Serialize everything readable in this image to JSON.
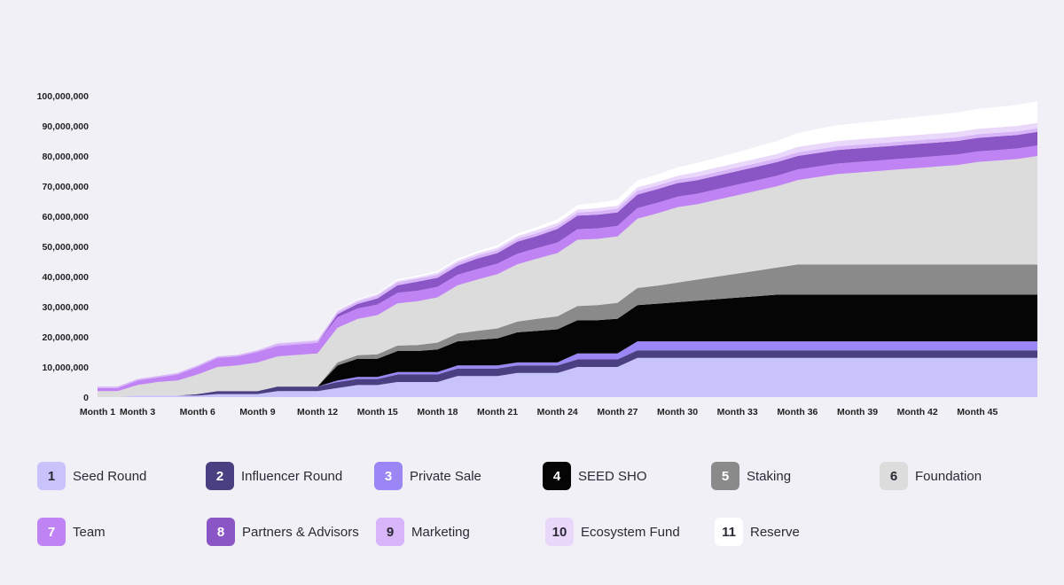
{
  "chart_data": {
    "type": "area",
    "stacked": true,
    "title": "",
    "xlabel": "",
    "ylabel": "",
    "ylim": [
      0,
      100000000
    ],
    "yticks": [
      0,
      10000000,
      20000000,
      30000000,
      40000000,
      50000000,
      60000000,
      70000000,
      80000000,
      90000000,
      100000000
    ],
    "ytick_labels": [
      "0",
      "10,000,000",
      "20,000,000",
      "30,000,000",
      "40,000,000",
      "50,000,000",
      "60,000,000",
      "70,000,000",
      "80,000,000",
      "90,000,000",
      "100,000,000"
    ],
    "xlim": [
      1,
      48
    ],
    "xticks": [
      {
        "x": 1,
        "label": "Month 1"
      },
      {
        "x": 3,
        "label": "Month 3"
      },
      {
        "x": 6,
        "label": "Month 6"
      },
      {
        "x": 9,
        "label": "Month 9"
      },
      {
        "x": 12,
        "label": "Month 12"
      },
      {
        "x": 15,
        "label": "Month 15"
      },
      {
        "x": 18,
        "label": "Month 18"
      },
      {
        "x": 21,
        "label": "Month 21"
      },
      {
        "x": 24,
        "label": "Month 24"
      },
      {
        "x": 27,
        "label": "Month 27"
      },
      {
        "x": 30,
        "label": "Month 30"
      },
      {
        "x": 33,
        "label": "Month 33"
      },
      {
        "x": 36,
        "label": "Month 36"
      },
      {
        "x": 39,
        "label": "Month 39"
      },
      {
        "x": 42,
        "label": "Month 42"
      },
      {
        "x": 45,
        "label": "Month 45"
      }
    ],
    "x": [
      1,
      2,
      3,
      4,
      5,
      6,
      7,
      8,
      9,
      10,
      11,
      12,
      13,
      14,
      15,
      16,
      17,
      18,
      19,
      20,
      21,
      22,
      23,
      24,
      25,
      26,
      27,
      28,
      29,
      30,
      31,
      32,
      33,
      34,
      35,
      36,
      37,
      38,
      39,
      40,
      41,
      42,
      43,
      44,
      45,
      46,
      47,
      48
    ],
    "series": [
      {
        "name": "Seed Round",
        "number": "1",
        "color": "#c9c3fb",
        "text_color": "#2a2a35",
        "values": [
          0,
          0,
          500000,
          500000,
          500000,
          500000,
          1000000,
          1000000,
          1000000,
          2000000,
          2000000,
          2000000,
          3000000,
          4000000,
          4000000,
          5000000,
          5000000,
          5000000,
          7000000,
          7000000,
          7000000,
          8000000,
          8000000,
          8000000,
          10000000,
          10000000,
          10000000,
          13000000,
          13000000,
          13000000,
          13000000,
          13000000,
          13000000,
          13000000,
          13000000,
          13000000,
          13000000,
          13000000,
          13000000,
          13000000,
          13000000,
          13000000,
          13000000,
          13000000,
          13000000,
          13000000,
          13000000,
          13000000
        ]
      },
      {
        "name": "Influencer Round",
        "number": "2",
        "color": "#4a3f80",
        "text_color": "#ffffff",
        "values": [
          0,
          0,
          0,
          0,
          0,
          500000,
          1000000,
          1000000,
          1000000,
          1500000,
          1500000,
          1500000,
          2000000,
          2000000,
          2000000,
          2500000,
          2500000,
          2500000,
          2500000,
          2500000,
          2500000,
          2500000,
          2500000,
          2500000,
          2500000,
          2500000,
          2500000,
          2500000,
          2500000,
          2500000,
          2500000,
          2500000,
          2500000,
          2500000,
          2500000,
          2500000,
          2500000,
          2500000,
          2500000,
          2500000,
          2500000,
          2500000,
          2500000,
          2500000,
          2500000,
          2500000,
          2500000,
          2500000
        ]
      },
      {
        "name": "Private Sale",
        "number": "3",
        "color": "#9a86f4",
        "text_color": "#ffffff",
        "values": [
          0,
          0,
          0,
          0,
          0,
          0,
          0,
          0,
          0,
          0,
          0,
          0,
          500000,
          700000,
          700000,
          800000,
          800000,
          800000,
          1000000,
          1000000,
          1000000,
          1000000,
          1000000,
          1000000,
          2000000,
          2000000,
          2000000,
          3000000,
          3000000,
          3000000,
          3000000,
          3000000,
          3000000,
          3000000,
          3000000,
          3000000,
          3000000,
          3000000,
          3000000,
          3000000,
          3000000,
          3000000,
          3000000,
          3000000,
          3000000,
          3000000,
          3000000,
          3000000
        ]
      },
      {
        "name": "SEED SHO",
        "number": "4",
        "color": "#050505",
        "text_color": "#ffffff",
        "values": [
          0,
          0,
          0,
          0,
          0,
          0,
          0,
          0,
          0,
          0,
          0,
          0,
          5000000,
          6000000,
          6000000,
          7000000,
          7000000,
          7500000,
          8000000,
          8500000,
          9000000,
          10000000,
          10500000,
          11000000,
          11000000,
          11000000,
          11500000,
          12000000,
          12500000,
          13000000,
          13500000,
          14000000,
          14500000,
          15000000,
          15500000,
          15500000,
          15500000,
          15500000,
          15500000,
          15500000,
          15500000,
          15500000,
          15500000,
          15500000,
          15500000,
          15500000,
          15500000,
          15500000
        ]
      },
      {
        "name": "Staking",
        "number": "5",
        "color": "#8a8a8a",
        "text_color": "#ffffff",
        "values": [
          0,
          0,
          0,
          0,
          0,
          0,
          0,
          0,
          0,
          0,
          0,
          0,
          1000000,
          1200000,
          1500000,
          1800000,
          2000000,
          2300000,
          2600000,
          3000000,
          3300000,
          3600000,
          4000000,
          4300000,
          4700000,
          5000000,
          5300000,
          5700000,
          6000000,
          6500000,
          7000000,
          7500000,
          8000000,
          8500000,
          9000000,
          10000000,
          10000000,
          10000000,
          10000000,
          10000000,
          10000000,
          10000000,
          10000000,
          10000000,
          10000000,
          10000000,
          10000000,
          10000000
        ]
      },
      {
        "name": "Foundation",
        "number": "6",
        "color": "#dcdcdc",
        "text_color": "#2a2a35",
        "values": [
          2000000,
          2000000,
          3500000,
          4500000,
          5000000,
          6500000,
          8000000,
          8500000,
          9500000,
          10000000,
          10500000,
          11000000,
          11500000,
          12000000,
          13000000,
          14000000,
          14500000,
          15000000,
          16000000,
          17000000,
          18000000,
          19000000,
          20000000,
          21000000,
          22000000,
          22000000,
          22000000,
          23000000,
          24000000,
          25000000,
          25000000,
          25500000,
          26000000,
          26500000,
          27000000,
          28000000,
          29000000,
          30000000,
          30500000,
          31000000,
          31500000,
          32000000,
          32500000,
          33000000,
          34000000,
          34500000,
          35000000,
          36000000
        ]
      },
      {
        "name": "Team",
        "number": "7",
        "color": "#c083f4",
        "text_color": "#ffffff",
        "values": [
          1000000,
          1000000,
          1500000,
          1500000,
          2000000,
          2500000,
          3000000,
          3000000,
          3500000,
          3500000,
          3500000,
          3500000,
          3500000,
          3500000,
          3500000,
          3500000,
          3500000,
          3500000,
          3500000,
          3500000,
          3500000,
          3500000,
          3500000,
          3500000,
          3500000,
          3500000,
          3500000,
          3500000,
          3500000,
          3500000,
          3500000,
          3500000,
          3500000,
          3500000,
          3500000,
          3500000,
          3500000,
          3500000,
          3500000,
          3500000,
          3500000,
          3500000,
          3500000,
          3500000,
          3500000,
          3500000,
          3500000,
          3500000
        ]
      },
      {
        "name": "Partners & Advisors",
        "number": "8",
        "color": "#8a55c4",
        "text_color": "#ffffff",
        "values": [
          0,
          0,
          0,
          0,
          0,
          0,
          0,
          0,
          0,
          0,
          0,
          0,
          1000000,
          1500000,
          2000000,
          2500000,
          3000000,
          3000000,
          3000000,
          3500000,
          3500000,
          4000000,
          4000000,
          4500000,
          4500000,
          4500000,
          4500000,
          4500000,
          4500000,
          4500000,
          4500000,
          4500000,
          4500000,
          4500000,
          4500000,
          4500000,
          4500000,
          4500000,
          4500000,
          4500000,
          4500000,
          4500000,
          4500000,
          4500000,
          4500000,
          4500000,
          4500000,
          4500000
        ]
      },
      {
        "name": "Marketing",
        "number": "9",
        "color": "#d8b4f8",
        "text_color": "#2a2a35",
        "values": [
          500000,
          500000,
          500000,
          500000,
          500000,
          500000,
          500000,
          500000,
          500000,
          700000,
          700000,
          700000,
          800000,
          800000,
          1000000,
          1000000,
          1000000,
          1000000,
          1000000,
          1000000,
          1000000,
          1000000,
          1000000,
          1000000,
          1000000,
          1200000,
          1200000,
          1200000,
          1200000,
          1200000,
          1200000,
          1200000,
          1200000,
          1200000,
          1200000,
          1200000,
          1200000,
          1200000,
          1200000,
          1200000,
          1200000,
          1200000,
          1200000,
          1200000,
          1200000,
          1200000,
          1200000,
          1200000
        ]
      },
      {
        "name": "Ecosystem Fund",
        "number": "10",
        "color": "#ead8fb",
        "text_color": "#2a2a35",
        "values": [
          0,
          0,
          0,
          0,
          0,
          0,
          0,
          0,
          0,
          300000,
          300000,
          300000,
          500000,
          500000,
          500000,
          500000,
          500000,
          700000,
          700000,
          700000,
          800000,
          800000,
          1000000,
          1000000,
          1000000,
          1000000,
          1000000,
          1200000,
          1200000,
          1200000,
          1500000,
          1500000,
          1500000,
          1500000,
          1500000,
          1800000,
          1800000,
          1800000,
          1800000,
          1800000,
          1800000,
          1800000,
          1800000,
          1800000,
          1800000,
          1800000,
          1800000,
          1800000
        ]
      },
      {
        "name": "Reserve",
        "number": "11",
        "color": "#ffffff",
        "text_color": "#2a2a35",
        "values": [
          0,
          0,
          0,
          0,
          0,
          0,
          0,
          0,
          0,
          0,
          0,
          0,
          300000,
          300000,
          300000,
          500000,
          500000,
          500000,
          600000,
          700000,
          800000,
          900000,
          1000000,
          1200000,
          1500000,
          1800000,
          2000000,
          2300000,
          2500000,
          2800000,
          3000000,
          3300000,
          3600000,
          4000000,
          4300000,
          4600000,
          5000000,
          5200000,
          5400000,
          5600000,
          5800000,
          6000000,
          6200000,
          6400000,
          6600000,
          6800000,
          7000000,
          7200000
        ]
      }
    ],
    "legend_position": "bottom"
  }
}
